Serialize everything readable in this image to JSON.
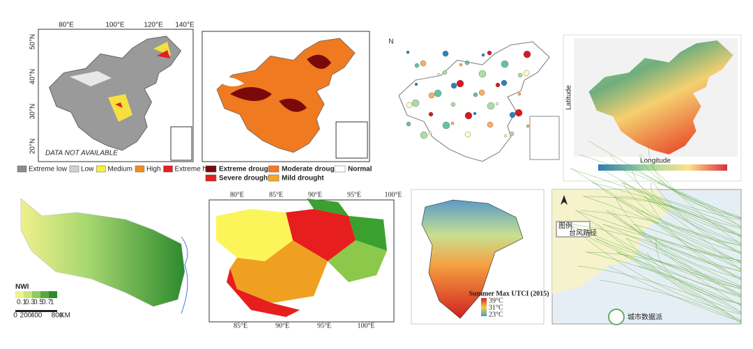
{
  "panels": [
    {
      "lon_labels": [
        "80°E",
        "100°E",
        "120°E",
        "140°E"
      ],
      "lat_labels": [
        "50°N",
        "40°N",
        "30°N",
        "20°N"
      ],
      "note": "DATA NOT AVAILABLE",
      "legend": [
        {
          "label": "Extreme low",
          "color": "#8c8c8c"
        },
        {
          "label": "Low",
          "color": "#d0d0d0"
        },
        {
          "label": "Medium",
          "color": "#f5f03c"
        },
        {
          "label": "High",
          "color": "#f08c1e"
        },
        {
          "label": "Extreme high",
          "color": "#e61e1e"
        }
      ]
    },
    {
      "legend": [
        {
          "label": "Extreme drought",
          "color": "#7a0a0a"
        },
        {
          "label": "Moderate drought",
          "color": "#f57820"
        },
        {
          "label": "Normal",
          "color": "#ffffff"
        },
        {
          "label": "Severe drought",
          "color": "#e61e1e"
        },
        {
          "label": "Mild drought",
          "color": "#f5a623"
        }
      ]
    },
    {
      "north": "N"
    },
    {
      "x_label": "Longitude",
      "y_label": "Latitude"
    },
    {
      "title": "NWI",
      "scale": [
        "0.1",
        "0.3",
        "0.5",
        "0.7",
        "1"
      ],
      "distance": [
        "0",
        "200",
        "400",
        "800"
      ],
      "unit": "KM"
    },
    {
      "top_lon": [
        "80°E",
        "85°E",
        "90°E",
        "95°E",
        "100°E"
      ],
      "bottom_lon": [
        "85°E",
        "90°E",
        "95°E",
        "100°E"
      ]
    },
    {
      "title": "Summer Max UTCI (2015)",
      "legend": [
        "39°C",
        "31°C",
        "23°C"
      ]
    },
    {
      "legend_title": "图例",
      "legend_item": "台风路径"
    }
  ],
  "watermark": "城市数据派"
}
